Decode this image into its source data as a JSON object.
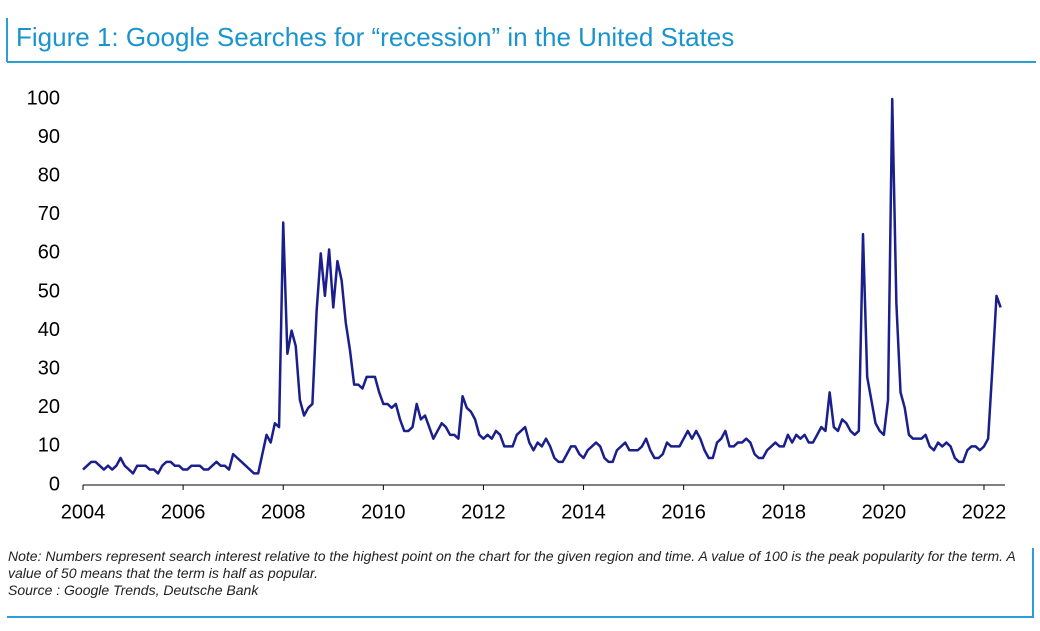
{
  "chart_data": {
    "type": "line",
    "title": "Figure 1: Google Searches for “recession” in the United States",
    "note": "Note: Numbers represent search interest relative to the highest point on the chart for the given region and time. A value of 100 is the peak popularity for the term. A value of 50 means that the term is half as popular.",
    "source": "Source : Google Trends, Deutsche Bank",
    "x": [
      2004,
      2004.083,
      2004.167,
      2004.25,
      2004.333,
      2004.417,
      2004.5,
      2004.583,
      2004.667,
      2004.75,
      2004.833,
      2004.917,
      2005,
      2005.083,
      2005.167,
      2005.25,
      2005.333,
      2005.417,
      2005.5,
      2005.583,
      2005.667,
      2005.75,
      2005.833,
      2005.917,
      2006,
      2006.083,
      2006.167,
      2006.25,
      2006.333,
      2006.417,
      2006.5,
      2006.583,
      2006.667,
      2006.75,
      2006.833,
      2006.917,
      2007,
      2007.083,
      2007.167,
      2007.25,
      2007.333,
      2007.417,
      2007.5,
      2007.583,
      2007.667,
      2007.75,
      2007.833,
      2007.917,
      2008,
      2008.083,
      2008.167,
      2008.25,
      2008.333,
      2008.417,
      2008.5,
      2008.583,
      2008.667,
      2008.75,
      2008.833,
      2008.917,
      2009,
      2009.083,
      2009.167,
      2009.25,
      2009.333,
      2009.417,
      2009.5,
      2009.583,
      2009.667,
      2009.75,
      2009.833,
      2009.917,
      2010,
      2010.083,
      2010.167,
      2010.25,
      2010.333,
      2010.417,
      2010.5,
      2010.583,
      2010.667,
      2010.75,
      2010.833,
      2010.917,
      2011,
      2011.083,
      2011.167,
      2011.25,
      2011.333,
      2011.417,
      2011.5,
      2011.583,
      2011.667,
      2011.75,
      2011.833,
      2011.917,
      2012,
      2012.083,
      2012.167,
      2012.25,
      2012.333,
      2012.417,
      2012.5,
      2012.583,
      2012.667,
      2012.75,
      2012.833,
      2012.917,
      2013,
      2013.083,
      2013.167,
      2013.25,
      2013.333,
      2013.417,
      2013.5,
      2013.583,
      2013.667,
      2013.75,
      2013.833,
      2013.917,
      2014,
      2014.083,
      2014.167,
      2014.25,
      2014.333,
      2014.417,
      2014.5,
      2014.583,
      2014.667,
      2014.75,
      2014.833,
      2014.917,
      2015,
      2015.083,
      2015.167,
      2015.25,
      2015.333,
      2015.417,
      2015.5,
      2015.583,
      2015.667,
      2015.75,
      2015.833,
      2015.917,
      2016,
      2016.083,
      2016.167,
      2016.25,
      2016.333,
      2016.417,
      2016.5,
      2016.583,
      2016.667,
      2016.75,
      2016.833,
      2016.917,
      2017,
      2017.083,
      2017.167,
      2017.25,
      2017.333,
      2017.417,
      2017.5,
      2017.583,
      2017.667,
      2017.75,
      2017.833,
      2017.917,
      2018,
      2018.083,
      2018.167,
      2018.25,
      2018.333,
      2018.417,
      2018.5,
      2018.583,
      2018.667,
      2018.75,
      2018.833,
      2018.917,
      2019,
      2019.083,
      2019.167,
      2019.25,
      2019.333,
      2019.417,
      2019.5,
      2019.583,
      2019.667,
      2019.75,
      2019.833,
      2019.917,
      2020,
      2020.083,
      2020.167,
      2020.25,
      2020.333,
      2020.417,
      2020.5,
      2020.583,
      2020.667,
      2020.75,
      2020.833,
      2020.917,
      2021,
      2021.083,
      2021.167,
      2021.25,
      2021.333,
      2021.417,
      2021.5,
      2021.583,
      2021.667,
      2021.75,
      2021.833,
      2021.917,
      2022,
      2022.083,
      2022.167,
      2022.25,
      2022.333
    ],
    "series": [
      {
        "name": "recession",
        "color": "#1a1f8c",
        "values": [
          4,
          5,
          6,
          6,
          5,
          4,
          5,
          4,
          5,
          7,
          5,
          4,
          3,
          5,
          5,
          5,
          4,
          4,
          3,
          5,
          6,
          6,
          5,
          5,
          4,
          4,
          5,
          5,
          5,
          4,
          4,
          5,
          6,
          5,
          5,
          4,
          8,
          7,
          6,
          5,
          4,
          3,
          3,
          8,
          13,
          11,
          16,
          15,
          68,
          34,
          40,
          36,
          22,
          18,
          20,
          21,
          45,
          60,
          49,
          61,
          46,
          58,
          53,
          42,
          35,
          26,
          26,
          25,
          28,
          28,
          28,
          24,
          21,
          21,
          20,
          21,
          17,
          14,
          14,
          15,
          21,
          17,
          18,
          15,
          12,
          14,
          16,
          15,
          13,
          13,
          12,
          23,
          20,
          19,
          17,
          13,
          12,
          13,
          12,
          14,
          13,
          10,
          10,
          10,
          13,
          14,
          15,
          11,
          9,
          11,
          10,
          12,
          10,
          7,
          6,
          6,
          8,
          10,
          10,
          8,
          7,
          9,
          10,
          11,
          10,
          7,
          6,
          6,
          9,
          10,
          11,
          9,
          9,
          9,
          10,
          12,
          9,
          7,
          7,
          8,
          11,
          10,
          10,
          10,
          12,
          14,
          12,
          14,
          12,
          9,
          7,
          7,
          11,
          12,
          14,
          10,
          10,
          11,
          11,
          12,
          11,
          8,
          7,
          7,
          9,
          10,
          11,
          10,
          10,
          13,
          11,
          13,
          12,
          13,
          11,
          11,
          13,
          15,
          14,
          24,
          15,
          14,
          17,
          16,
          14,
          13,
          14,
          65,
          28,
          22,
          16,
          14,
          13,
          22,
          100,
          47,
          24,
          20,
          13,
          12,
          12,
          12,
          13,
          10,
          9,
          11,
          10,
          11,
          10,
          7,
          6,
          6,
          9,
          10,
          10,
          9,
          10,
          12,
          30,
          49,
          46
        ]
      }
    ],
    "xlim": [
      2004,
      2022.42
    ],
    "xticks": [
      2004,
      2006,
      2008,
      2010,
      2012,
      2014,
      2016,
      2018,
      2020,
      2022
    ],
    "ylim": [
      0,
      100
    ],
    "yticks": [
      0,
      10,
      20,
      30,
      40,
      50,
      60,
      70,
      80,
      90,
      100
    ],
    "grid": false
  }
}
